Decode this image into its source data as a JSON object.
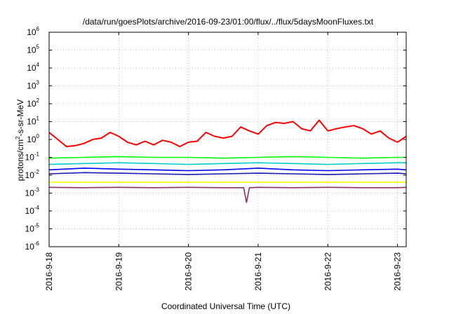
{
  "chart_data": {
    "type": "line",
    "title": "/data/run/goesPlots/archive/2016-09-23/01:00/flux/../flux/5daysMoonFluxes.txt",
    "xlabel": "Coordinated Universal Time (UTC)",
    "ylabel": {
      "base": "protons/cm",
      "sup": "2",
      "rest": "-s-sr-MeV"
    },
    "yscale": "log",
    "ylim": [
      1e-06,
      1000000.0
    ],
    "xlim": [
      "2016-9-18",
      "2016-9-23 03:00"
    ],
    "grid": true,
    "legend": "none",
    "y_ticks": [
      {
        "base": "10",
        "exp": "-6",
        "value": 1e-06
      },
      {
        "base": "10",
        "exp": "-5",
        "value": 1e-05
      },
      {
        "base": "10",
        "exp": "-4",
        "value": 0.0001
      },
      {
        "base": "10",
        "exp": "-3",
        "value": 0.001
      },
      {
        "base": "10",
        "exp": "-2",
        "value": 0.01
      },
      {
        "base": "10",
        "exp": "-1",
        "value": 0.1
      },
      {
        "base": "10",
        "exp": "0",
        "value": 1.0
      },
      {
        "base": "10",
        "exp": "1",
        "value": 10.0
      },
      {
        "base": "10",
        "exp": "2",
        "value": 100.0
      },
      {
        "base": "10",
        "exp": "3",
        "value": 1000.0
      },
      {
        "base": "10",
        "exp": "4",
        "value": 10000.0
      },
      {
        "base": "10",
        "exp": "5",
        "value": 100000.0
      },
      {
        "base": "10",
        "exp": "6",
        "value": 1000000.0
      }
    ],
    "x_ticks": [
      {
        "label": "2016-9-18",
        "day": 0
      },
      {
        "label": "2016-9-19",
        "day": 1
      },
      {
        "label": "2016-9-20",
        "day": 2
      },
      {
        "label": "2016-9-21",
        "day": 3
      },
      {
        "label": "2016-9-22",
        "day": 4
      },
      {
        "label": "2016-9-23",
        "day": 5
      }
    ],
    "series": [
      {
        "color": "#ff0000",
        "x": [
          "2016-9-18 00:00",
          "2016-9-18 03:00",
          "2016-9-18 06:00",
          "2016-9-18 09:00",
          "2016-9-18 12:00",
          "2016-9-18 15:00",
          "2016-9-18 18:00",
          "2016-9-18 21:00",
          "2016-9-19 00:00",
          "2016-9-19 03:00",
          "2016-9-19 06:00",
          "2016-9-19 09:00",
          "2016-9-19 12:00",
          "2016-9-19 15:00",
          "2016-9-19 18:00",
          "2016-9-19 21:00",
          "2016-9-20 00:00",
          "2016-9-20 03:00",
          "2016-9-20 06:00",
          "2016-9-20 09:00",
          "2016-9-20 12:00",
          "2016-9-20 15:00",
          "2016-9-20 18:00",
          "2016-9-20 21:00",
          "2016-9-21 00:00",
          "2016-9-21 03:00",
          "2016-9-21 06:00",
          "2016-9-21 09:00",
          "2016-9-21 12:00",
          "2016-9-21 15:00",
          "2016-9-21 18:00",
          "2016-9-21 21:00",
          "2016-9-22 00:00",
          "2016-9-22 03:00",
          "2016-9-22 06:00",
          "2016-9-22 09:00",
          "2016-9-22 12:00",
          "2016-9-22 15:00",
          "2016-9-22 18:00",
          "2016-9-22 21:00",
          "2016-9-23 00:00",
          "2016-9-23 03:00"
        ],
        "y": [
          2.5,
          1.0,
          0.4,
          0.45,
          0.6,
          1.0,
          1.2,
          2.5,
          1.5,
          0.7,
          0.5,
          0.8,
          0.5,
          0.9,
          0.7,
          0.4,
          0.7,
          0.8,
          2.5,
          1.5,
          1.2,
          1.5,
          5.0,
          3.0,
          2.0,
          6.0,
          9.0,
          8.0,
          10.0,
          4.0,
          3.0,
          12.0,
          3.0,
          4.0,
          5.0,
          6.0,
          4.0,
          2.0,
          3.0,
          1.2,
          0.7,
          1.5
        ]
      },
      {
        "color": "#00ff00",
        "x": [
          "2016-9-18 00:00",
          "2016-9-18 12:00",
          "2016-9-19 00:00",
          "2016-9-19 12:00",
          "2016-9-20 00:00",
          "2016-9-20 12:00",
          "2016-9-21 00:00",
          "2016-9-21 12:00",
          "2016-9-22 00:00",
          "2016-9-22 12:00",
          "2016-9-23 00:00",
          "2016-9-23 03:00"
        ],
        "y": [
          0.09,
          0.1,
          0.11,
          0.1,
          0.1,
          0.09,
          0.1,
          0.11,
          0.1,
          0.09,
          0.1,
          0.1
        ]
      },
      {
        "color": "#00cccc",
        "x": [
          "2016-9-18 00:00",
          "2016-9-18 12:00",
          "2016-9-19 00:00",
          "2016-9-19 12:00",
          "2016-9-20 00:00",
          "2016-9-20 12:00",
          "2016-9-21 00:00",
          "2016-9-21 12:00",
          "2016-9-22 00:00",
          "2016-9-22 12:00",
          "2016-9-23 00:00",
          "2016-9-23 03:00"
        ],
        "y": [
          0.04,
          0.045,
          0.05,
          0.045,
          0.04,
          0.045,
          0.05,
          0.045,
          0.04,
          0.045,
          0.05,
          0.05
        ]
      },
      {
        "color": "#0000ff",
        "x": [
          "2016-9-18 00:00",
          "2016-9-18 12:00",
          "2016-9-19 00:00",
          "2016-9-19 12:00",
          "2016-9-20 00:00",
          "2016-9-20 12:00",
          "2016-9-21 00:00",
          "2016-9-21 12:00",
          "2016-9-22 00:00",
          "2016-9-22 12:00",
          "2016-9-23 00:00",
          "2016-9-23 03:00"
        ],
        "y": [
          0.02,
          0.025,
          0.022,
          0.02,
          0.018,
          0.02,
          0.025,
          0.02,
          0.018,
          0.02,
          0.022,
          0.02
        ]
      },
      {
        "color": "#1a1ab3",
        "x": [
          "2016-9-18 00:00",
          "2016-9-18 12:00",
          "2016-9-19 00:00",
          "2016-9-19 12:00",
          "2016-9-20 00:00",
          "2016-9-20 12:00",
          "2016-9-21 00:00",
          "2016-9-21 12:00",
          "2016-9-22 00:00",
          "2016-9-22 12:00",
          "2016-9-23 00:00",
          "2016-9-23 03:00"
        ],
        "y": [
          0.012,
          0.014,
          0.013,
          0.012,
          0.011,
          0.012,
          0.013,
          0.012,
          0.011,
          0.012,
          0.013,
          0.012
        ]
      },
      {
        "color": "#ffff00",
        "x": [
          "2016-9-18 00:00",
          "2016-9-18 12:00",
          "2016-9-19 00:00",
          "2016-9-19 12:00",
          "2016-9-20 00:00",
          "2016-9-20 12:00",
          "2016-9-21 00:00",
          "2016-9-21 12:00",
          "2016-9-22 00:00",
          "2016-9-22 12:00",
          "2016-9-23 00:00",
          "2016-9-23 03:00"
        ],
        "y": [
          0.004,
          0.004,
          0.004,
          0.004,
          0.004,
          0.004,
          0.004,
          0.004,
          0.004,
          0.004,
          0.004,
          0.004
        ]
      },
      {
        "color": "#8b2f6e",
        "x": [
          "2016-9-18 00:00",
          "2016-9-18 12:00",
          "2016-9-19 00:00",
          "2016-9-19 12:00",
          "2016-9-20 00:00",
          "2016-9-20 12:00",
          "2016-9-20 19:00",
          "2016-9-20 20:00",
          "2016-9-20 21:00",
          "2016-9-21 00:00",
          "2016-9-21 12:00",
          "2016-9-22 00:00",
          "2016-9-22 12:00",
          "2016-9-23 00:00",
          "2016-9-23 03:00"
        ],
        "y": [
          0.0021,
          0.002,
          0.0021,
          0.002,
          0.0021,
          0.002,
          0.002,
          0.0003,
          0.002,
          0.0021,
          0.002,
          0.0021,
          0.002,
          0.002,
          0.0021
        ]
      }
    ]
  }
}
